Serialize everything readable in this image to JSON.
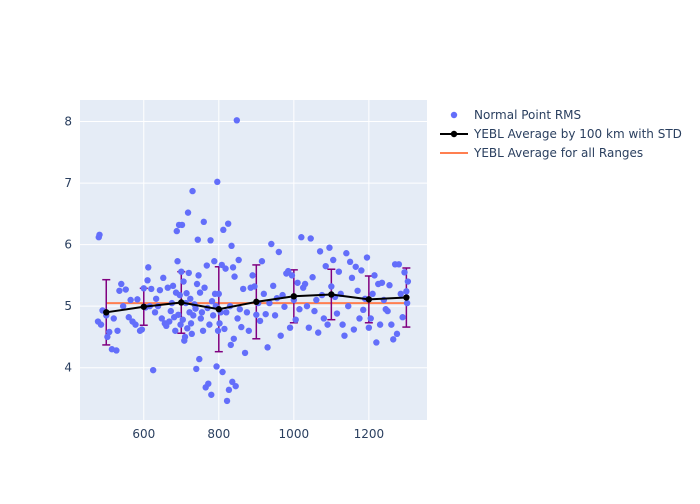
{
  "chart_data": {
    "type": "scatter",
    "xlim": [
      430,
      1355
    ],
    "ylim": [
      3.15,
      8.35
    ],
    "xticks": [
      600,
      800,
      1000,
      1200
    ],
    "yticks": [
      4,
      5,
      6,
      7,
      8
    ],
    "grid": true,
    "legend_position": "right, outside plot",
    "colors": {
      "plot_background": "#e5ecf6",
      "grid": "#ffffff",
      "scatter": "#636efa",
      "average_line": "#000000",
      "error_bars": "#800080",
      "overall_line": "#ff7f50"
    },
    "series": [
      {
        "name": "Normal Point RMS",
        "kind": "markers",
        "points": [
          [
            478,
            4.75
          ],
          [
            480,
            6.12
          ],
          [
            482,
            6.16
          ],
          [
            486,
            4.7
          ],
          [
            490,
            4.93
          ],
          [
            500,
            4.85
          ],
          [
            503,
            4.5
          ],
          [
            508,
            4.58
          ],
          [
            515,
            4.3
          ],
          [
            520,
            4.8
          ],
          [
            527,
            4.28
          ],
          [
            530,
            4.6
          ],
          [
            535,
            5.25
          ],
          [
            540,
            5.36
          ],
          [
            545,
            5.0
          ],
          [
            552,
            5.27
          ],
          [
            560,
            4.82
          ],
          [
            565,
            5.1
          ],
          [
            570,
            4.75
          ],
          [
            578,
            4.7
          ],
          [
            583,
            5.11
          ],
          [
            590,
            4.6
          ],
          [
            595,
            4.62
          ],
          [
            600,
            5.29
          ],
          [
            605,
            4.98
          ],
          [
            610,
            5.42
          ],
          [
            612,
            5.63
          ],
          [
            616,
            5.0
          ],
          [
            620,
            5.28
          ],
          [
            625,
            3.96
          ],
          [
            630,
            4.9
          ],
          [
            633,
            5.12
          ],
          [
            638,
            5.0
          ],
          [
            643,
            5.26
          ],
          [
            648,
            4.8
          ],
          [
            652,
            5.46
          ],
          [
            656,
            4.72
          ],
          [
            660,
            4.68
          ],
          [
            664,
            5.3
          ],
          [
            668,
            4.75
          ],
          [
            672,
            4.92
          ],
          [
            675,
            5.05
          ],
          [
            678,
            5.33
          ],
          [
            681,
            4.82
          ],
          [
            684,
            4.6
          ],
          [
            686,
            5.22
          ],
          [
            688,
            6.22
          ],
          [
            690,
            5.73
          ],
          [
            692,
            4.86
          ],
          [
            694,
            6.32
          ],
          [
            696,
            5.18
          ],
          [
            698,
            4.7
          ],
          [
            700,
            5.56
          ],
          [
            702,
            6.32
          ],
          [
            704,
            4.78
          ],
          [
            706,
            5.4
          ],
          [
            708,
            4.44
          ],
          [
            710,
            4.5
          ],
          [
            712,
            5.05
          ],
          [
            714,
            5.21
          ],
          [
            716,
            4.64
          ],
          [
            718,
            6.52
          ],
          [
            720,
            5.54
          ],
          [
            722,
            4.9
          ],
          [
            724,
            5.12
          ],
          [
            726,
            4.72
          ],
          [
            728,
            4.55
          ],
          [
            730,
            6.87
          ],
          [
            732,
            4.85
          ],
          [
            735,
            5.03
          ],
          [
            738,
            4.96
          ],
          [
            740,
            3.98
          ],
          [
            742,
            5.36
          ],
          [
            744,
            6.08
          ],
          [
            746,
            5.5
          ],
          [
            748,
            4.14
          ],
          [
            750,
            5.22
          ],
          [
            752,
            4.8
          ],
          [
            755,
            4.9
          ],
          [
            758,
            4.6
          ],
          [
            760,
            6.37
          ],
          [
            762,
            5.3
          ],
          [
            765,
            3.68
          ],
          [
            768,
            5.66
          ],
          [
            770,
            4.97
          ],
          [
            772,
            3.74
          ],
          [
            775,
            4.7
          ],
          [
            778,
            6.07
          ],
          [
            780,
            3.56
          ],
          [
            782,
            5.08
          ],
          [
            785,
            4.85
          ],
          [
            788,
            5.73
          ],
          [
            790,
            5.2
          ],
          [
            792,
            5.0
          ],
          [
            794,
            4.02
          ],
          [
            796,
            7.02
          ],
          [
            798,
            4.6
          ],
          [
            800,
            5.2
          ],
          [
            802,
            4.72
          ],
          [
            805,
            4.9
          ],
          [
            808,
            5.67
          ],
          [
            810,
            3.93
          ],
          [
            812,
            6.24
          ],
          [
            815,
            4.63
          ],
          [
            818,
            5.61
          ],
          [
            820,
            4.9
          ],
          [
            822,
            3.46
          ],
          [
            825,
            6.34
          ],
          [
            827,
            3.64
          ],
          [
            830,
            5.0
          ],
          [
            832,
            4.37
          ],
          [
            834,
            5.98
          ],
          [
            836,
            3.77
          ],
          [
            838,
            5.63
          ],
          [
            840,
            4.47
          ],
          [
            842,
            5.48
          ],
          [
            845,
            3.7
          ],
          [
            848,
            8.02
          ],
          [
            850,
            4.8
          ],
          [
            853,
            5.75
          ],
          [
            856,
            4.95
          ],
          [
            860,
            4.66
          ],
          [
            865,
            5.28
          ],
          [
            870,
            4.24
          ],
          [
            875,
            4.9
          ],
          [
            880,
            4.6
          ],
          [
            885,
            5.3
          ],
          [
            890,
            5.5
          ],
          [
            895,
            5.32
          ],
          [
            900,
            4.86
          ],
          [
            905,
            5.05
          ],
          [
            910,
            4.76
          ],
          [
            915,
            5.73
          ],
          [
            920,
            5.2
          ],
          [
            925,
            4.87
          ],
          [
            930,
            4.33
          ],
          [
            935,
            5.05
          ],
          [
            940,
            6.01
          ],
          [
            945,
            5.33
          ],
          [
            950,
            4.85
          ],
          [
            955,
            5.13
          ],
          [
            960,
            5.88
          ],
          [
            965,
            4.52
          ],
          [
            970,
            5.18
          ],
          [
            975,
            4.99
          ],
          [
            980,
            5.53
          ],
          [
            985,
            5.57
          ],
          [
            990,
            4.65
          ],
          [
            995,
            5.5
          ],
          [
            1000,
            5.1
          ],
          [
            1005,
            4.78
          ],
          [
            1010,
            5.38
          ],
          [
            1015,
            4.95
          ],
          [
            1020,
            6.12
          ],
          [
            1025,
            5.3
          ],
          [
            1030,
            5.36
          ],
          [
            1035,
            5.0
          ],
          [
            1040,
            4.65
          ],
          [
            1045,
            6.1
          ],
          [
            1050,
            5.47
          ],
          [
            1055,
            4.92
          ],
          [
            1060,
            5.1
          ],
          [
            1065,
            4.57
          ],
          [
            1070,
            5.89
          ],
          [
            1075,
            5.18
          ],
          [
            1080,
            4.8
          ],
          [
            1085,
            5.65
          ],
          [
            1090,
            4.7
          ],
          [
            1095,
            5.95
          ],
          [
            1100,
            5.32
          ],
          [
            1105,
            5.75
          ],
          [
            1110,
            5.15
          ],
          [
            1115,
            4.88
          ],
          [
            1120,
            5.56
          ],
          [
            1125,
            5.2
          ],
          [
            1130,
            4.7
          ],
          [
            1135,
            4.52
          ],
          [
            1140,
            5.86
          ],
          [
            1145,
            5.0
          ],
          [
            1150,
            5.72
          ],
          [
            1155,
            5.46
          ],
          [
            1160,
            4.62
          ],
          [
            1165,
            5.64
          ],
          [
            1170,
            5.25
          ],
          [
            1175,
            4.8
          ],
          [
            1180,
            5.58
          ],
          [
            1185,
            4.94
          ],
          [
            1190,
            5.12
          ],
          [
            1195,
            5.79
          ],
          [
            1200,
            4.65
          ],
          [
            1205,
            4.8
          ],
          [
            1210,
            5.2
          ],
          [
            1215,
            5.5
          ],
          [
            1220,
            4.41
          ],
          [
            1225,
            5.36
          ],
          [
            1230,
            4.7
          ],
          [
            1235,
            5.38
          ],
          [
            1240,
            5.1
          ],
          [
            1245,
            4.95
          ],
          [
            1250,
            4.92
          ],
          [
            1255,
            5.34
          ],
          [
            1260,
            4.7
          ],
          [
            1265,
            4.46
          ],
          [
            1270,
            5.68
          ],
          [
            1275,
            4.55
          ],
          [
            1280,
            5.68
          ],
          [
            1285,
            5.2
          ],
          [
            1290,
            4.82
          ],
          [
            1295,
            5.55
          ],
          [
            1300,
            5.24
          ],
          [
            1302,
            5.05
          ],
          [
            1304,
            5.4
          ]
        ]
      },
      {
        "name": "YEBL Average by 100 km with STD",
        "kind": "line+markers+errorbars",
        "x": [
          500,
          600,
          700,
          800,
          900,
          1000,
          1100,
          1200,
          1300
        ],
        "y": [
          4.9,
          4.99,
          5.06,
          4.95,
          5.07,
          5.16,
          5.19,
          5.11,
          5.14
        ],
        "std": [
          0.53,
          0.3,
          0.5,
          0.69,
          0.6,
          0.43,
          0.41,
          0.38,
          0.48
        ]
      },
      {
        "name": "YEBL Average for all Ranges",
        "kind": "line",
        "x": [
          500,
          1300
        ],
        "y": [
          5.05,
          5.05
        ]
      }
    ]
  }
}
